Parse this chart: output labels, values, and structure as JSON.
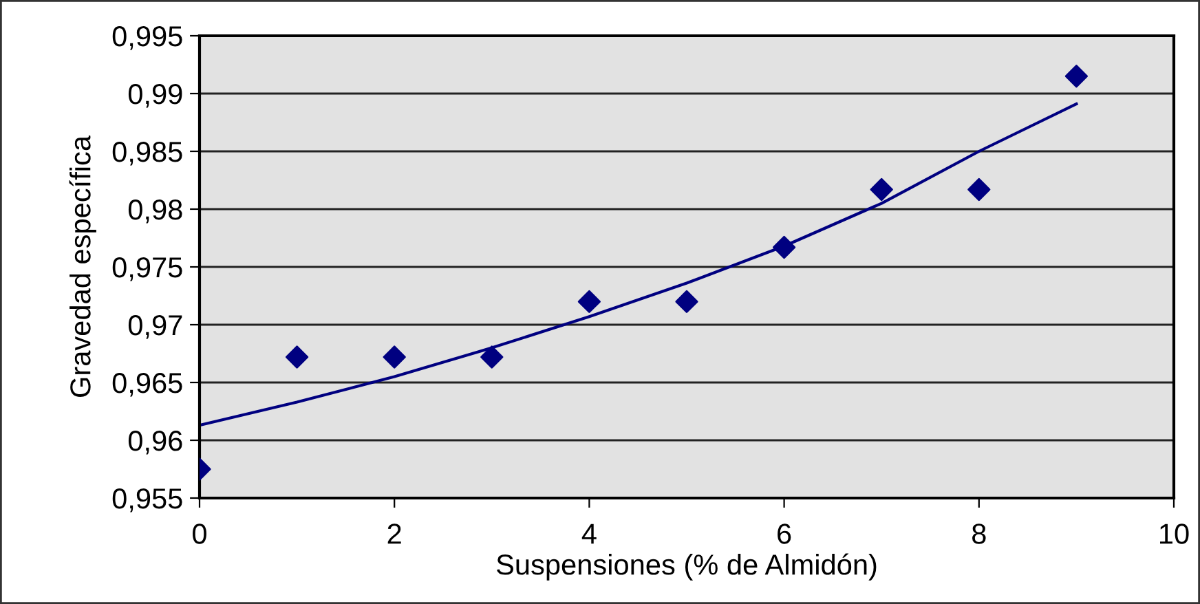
{
  "chart_data": {
    "type": "scatter",
    "xlabel": "Suspensiones (% de Almidón)",
    "ylabel": "Gravedad específica",
    "series": [
      {
        "color": "#000080",
        "marker": "diamond",
        "x": [
          0,
          1,
          2,
          3,
          4,
          5,
          6,
          7,
          8,
          9
        ],
        "values": [
          0.9575,
          0.9672,
          0.9672,
          0.9672,
          0.972,
          0.972,
          0.9767,
          0.9817,
          0.9817,
          0.9915
        ]
      },
      {
        "type": "line",
        "color": "#000080",
        "marker": "none",
        "line_style": "solid",
        "x": [
          0,
          1,
          2,
          3,
          4,
          5,
          6,
          7,
          8,
          9
        ],
        "values": [
          0.9613,
          0.9633,
          0.9655,
          0.968,
          0.9707,
          0.9736,
          0.9768,
          0.9805,
          0.985,
          0.9891
        ]
      }
    ],
    "xlim": [
      0,
      10
    ],
    "xticks": [
      0,
      2,
      4,
      6,
      8,
      10
    ],
    "ylim": [
      0.955,
      0.995
    ],
    "yticks": [
      {
        "value": 0.955,
        "label": "0,955"
      },
      {
        "value": 0.96,
        "label": "0,96"
      },
      {
        "value": 0.965,
        "label": "0,965"
      },
      {
        "value": 0.97,
        "label": "0,97"
      },
      {
        "value": 0.975,
        "label": "0,975"
      },
      {
        "value": 0.98,
        "label": "0,98"
      },
      {
        "value": 0.985,
        "label": "0,985"
      },
      {
        "value": 0.99,
        "label": "0,99"
      },
      {
        "value": 0.995,
        "label": "0,995"
      }
    ],
    "grid": "y",
    "legend": false
  }
}
